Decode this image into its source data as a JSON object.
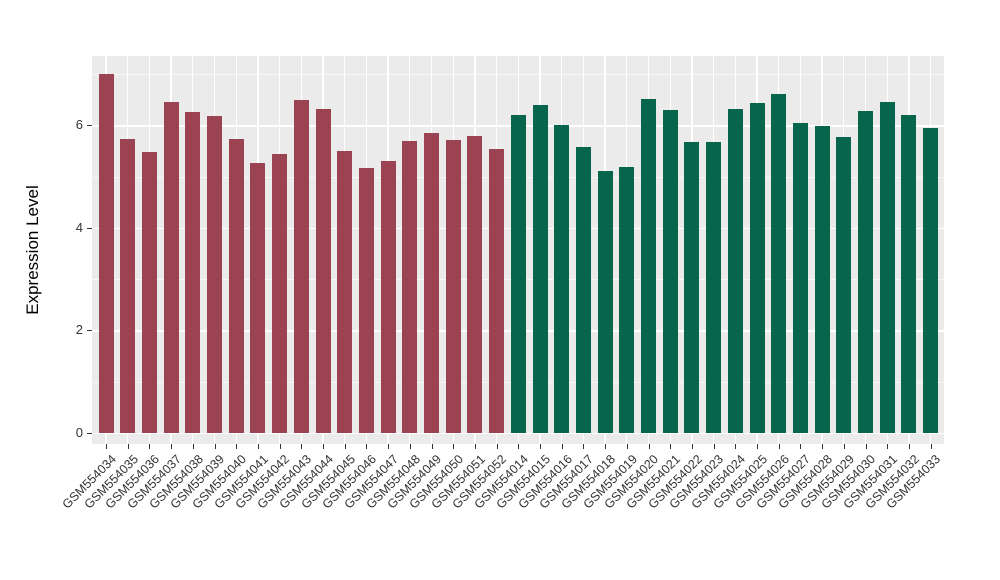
{
  "figure": {
    "background": "#FFFFFF"
  },
  "chart_data": {
    "type": "bar",
    "title": "",
    "xlabel": "",
    "ylabel": "Expression Level",
    "ylim": [
      0,
      7.36
    ],
    "yticks_major": [
      0,
      2,
      4,
      6
    ],
    "yticks_minor": [
      1,
      3,
      5,
      7
    ],
    "grid": "on",
    "legend": "none",
    "panel_bg": "#EBEBEB",
    "grid_color": "#FFFFFF",
    "axis_text_color": "#333333",
    "groups": [
      {
        "id": "group-1",
        "color": "#9B4353"
      },
      {
        "id": "group-2",
        "color": "#06654A"
      }
    ],
    "bars": [
      {
        "label": "GSM554034",
        "value": 7.0,
        "group": 0
      },
      {
        "label": "GSM554035",
        "value": 5.73,
        "group": 0
      },
      {
        "label": "GSM554036",
        "value": 5.48,
        "group": 0
      },
      {
        "label": "GSM554037",
        "value": 6.45,
        "group": 0
      },
      {
        "label": "GSM554038",
        "value": 6.26,
        "group": 0
      },
      {
        "label": "GSM554039",
        "value": 6.17,
        "group": 0
      },
      {
        "label": "GSM554040",
        "value": 5.73,
        "group": 0
      },
      {
        "label": "GSM554041",
        "value": 5.27,
        "group": 0
      },
      {
        "label": "GSM554042",
        "value": 5.44,
        "group": 0
      },
      {
        "label": "GSM554043",
        "value": 6.5,
        "group": 0
      },
      {
        "label": "GSM554044",
        "value": 6.32,
        "group": 0
      },
      {
        "label": "GSM554045",
        "value": 5.49,
        "group": 0
      },
      {
        "label": "GSM554046",
        "value": 5.17,
        "group": 0
      },
      {
        "label": "GSM554047",
        "value": 5.3,
        "group": 0
      },
      {
        "label": "GSM554048",
        "value": 5.69,
        "group": 0
      },
      {
        "label": "GSM554049",
        "value": 5.84,
        "group": 0
      },
      {
        "label": "GSM554050",
        "value": 5.72,
        "group": 0
      },
      {
        "label": "GSM554051",
        "value": 5.79,
        "group": 0
      },
      {
        "label": "GSM554052",
        "value": 5.53,
        "group": 0
      },
      {
        "label": "GSM554014",
        "value": 6.19,
        "group": 1
      },
      {
        "label": "GSM554015",
        "value": 6.39,
        "group": 1
      },
      {
        "label": "GSM554016",
        "value": 6.0,
        "group": 1
      },
      {
        "label": "GSM554017",
        "value": 5.58,
        "group": 1
      },
      {
        "label": "GSM554018",
        "value": 5.11,
        "group": 1
      },
      {
        "label": "GSM554019",
        "value": 5.19,
        "group": 1
      },
      {
        "label": "GSM554020",
        "value": 6.52,
        "group": 1
      },
      {
        "label": "GSM554021",
        "value": 6.29,
        "group": 1
      },
      {
        "label": "GSM554022",
        "value": 5.68,
        "group": 1
      },
      {
        "label": "GSM554023",
        "value": 5.68,
        "group": 1
      },
      {
        "label": "GSM554024",
        "value": 6.31,
        "group": 1
      },
      {
        "label": "GSM554025",
        "value": 6.43,
        "group": 1
      },
      {
        "label": "GSM554026",
        "value": 6.61,
        "group": 1
      },
      {
        "label": "GSM554027",
        "value": 6.04,
        "group": 1
      },
      {
        "label": "GSM554028",
        "value": 5.99,
        "group": 1
      },
      {
        "label": "GSM554029",
        "value": 5.77,
        "group": 1
      },
      {
        "label": "GSM554030",
        "value": 6.28,
        "group": 1
      },
      {
        "label": "GSM554031",
        "value": 6.46,
        "group": 1
      },
      {
        "label": "GSM554032",
        "value": 6.19,
        "group": 1
      },
      {
        "label": "GSM554033",
        "value": 5.95,
        "group": 1
      }
    ]
  }
}
